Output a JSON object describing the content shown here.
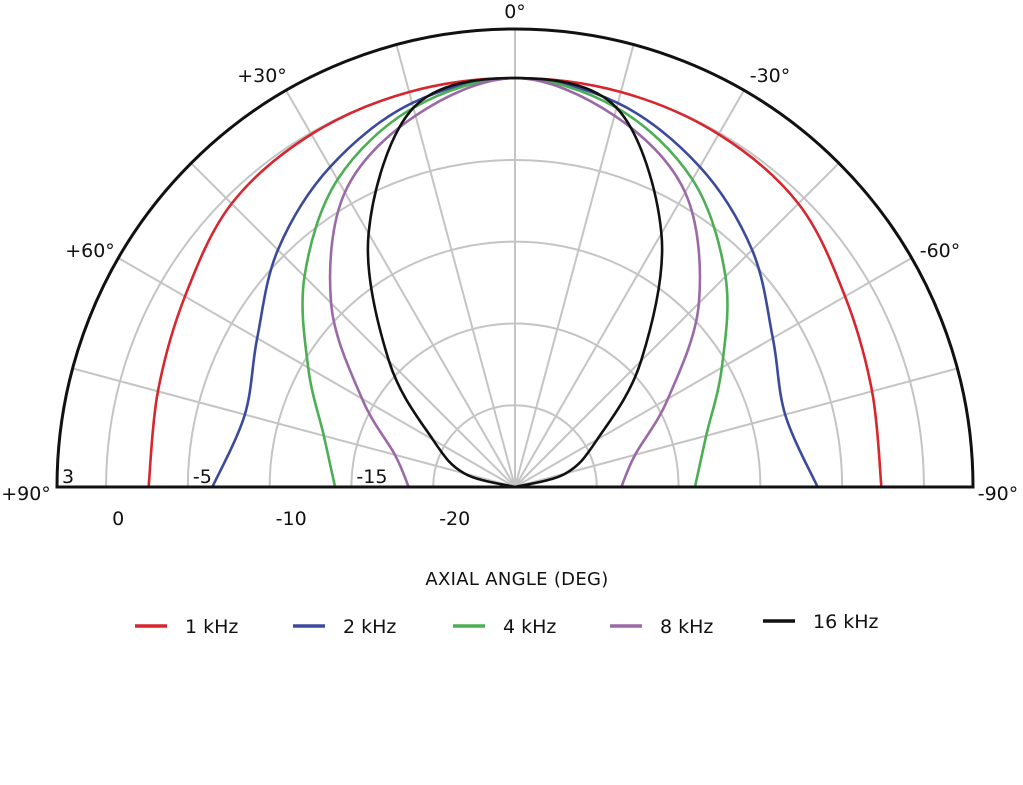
{
  "chart_data": {
    "type": "polar-line",
    "title": "",
    "xlabel": "AXIAL ANGLE (DEG)",
    "angle_range": [
      -90,
      90
    ],
    "angle_ticks": [
      {
        "value": 90,
        "label": "+90°"
      },
      {
        "value": 60,
        "label": "+60°"
      },
      {
        "value": 30,
        "label": "+30°"
      },
      {
        "value": 0,
        "label": "0°"
      },
      {
        "value": -30,
        "label": "-30°"
      },
      {
        "value": -60,
        "label": "-60°"
      },
      {
        "value": -90,
        "label": "-90°"
      }
    ],
    "angle_grid_step": 15,
    "radial_range": [
      -25,
      3
    ],
    "radial_ticks": [
      {
        "value": 3,
        "label": "3"
      },
      {
        "value": 0,
        "label": "0"
      },
      {
        "value": -5,
        "label": "-5"
      },
      {
        "value": -10,
        "label": "-10"
      },
      {
        "value": -15,
        "label": "-15"
      },
      {
        "value": -20,
        "label": "-20"
      }
    ],
    "grid": true,
    "legend_position": "bottom",
    "angles": [
      -90,
      -75,
      -60,
      -45,
      -30,
      -15,
      0,
      15,
      30,
      45,
      60,
      75,
      90
    ],
    "series": [
      {
        "name": "1 kHz",
        "color": "#d7262e",
        "values": [
          -2.6,
          -2.4,
          -1.7,
          -0.5,
          -0.1,
          0,
          0,
          0,
          -0.1,
          -0.5,
          -1.7,
          -2.4,
          -2.6
        ]
      },
      {
        "name": "2 kHz",
        "color": "#3b4a9c",
        "values": [
          -6.5,
          -7.9,
          -6.8,
          -4.5,
          -2.4,
          -0.7,
          0,
          -0.7,
          -2.4,
          -4.5,
          -6.8,
          -7.9,
          -6.5
        ]
      },
      {
        "name": "4 kHz",
        "color": "#4caf54",
        "values": [
          -14.0,
          -12.9,
          -10.4,
          -6.8,
          -3.3,
          -1.0,
          0,
          -1.0,
          -3.3,
          -6.8,
          -10.4,
          -12.9,
          -14.0
        ]
      },
      {
        "name": "8 kHz",
        "color": "#9a6aa6",
        "values": [
          -18.5,
          -17.4,
          -14.2,
          -9.1,
          -4.2,
          -1.5,
          0,
          -1.5,
          -4.2,
          -9.1,
          -14.2,
          -17.4,
          -18.5
        ]
      },
      {
        "name": "16 kHz",
        "color": "#111111",
        "values": [
          -25,
          -21.8,
          -19.2,
          -14.1,
          -7.1,
          -1.0,
          0,
          -1.0,
          -7.1,
          -14.1,
          -19.2,
          -21.8,
          -25
        ]
      }
    ]
  }
}
